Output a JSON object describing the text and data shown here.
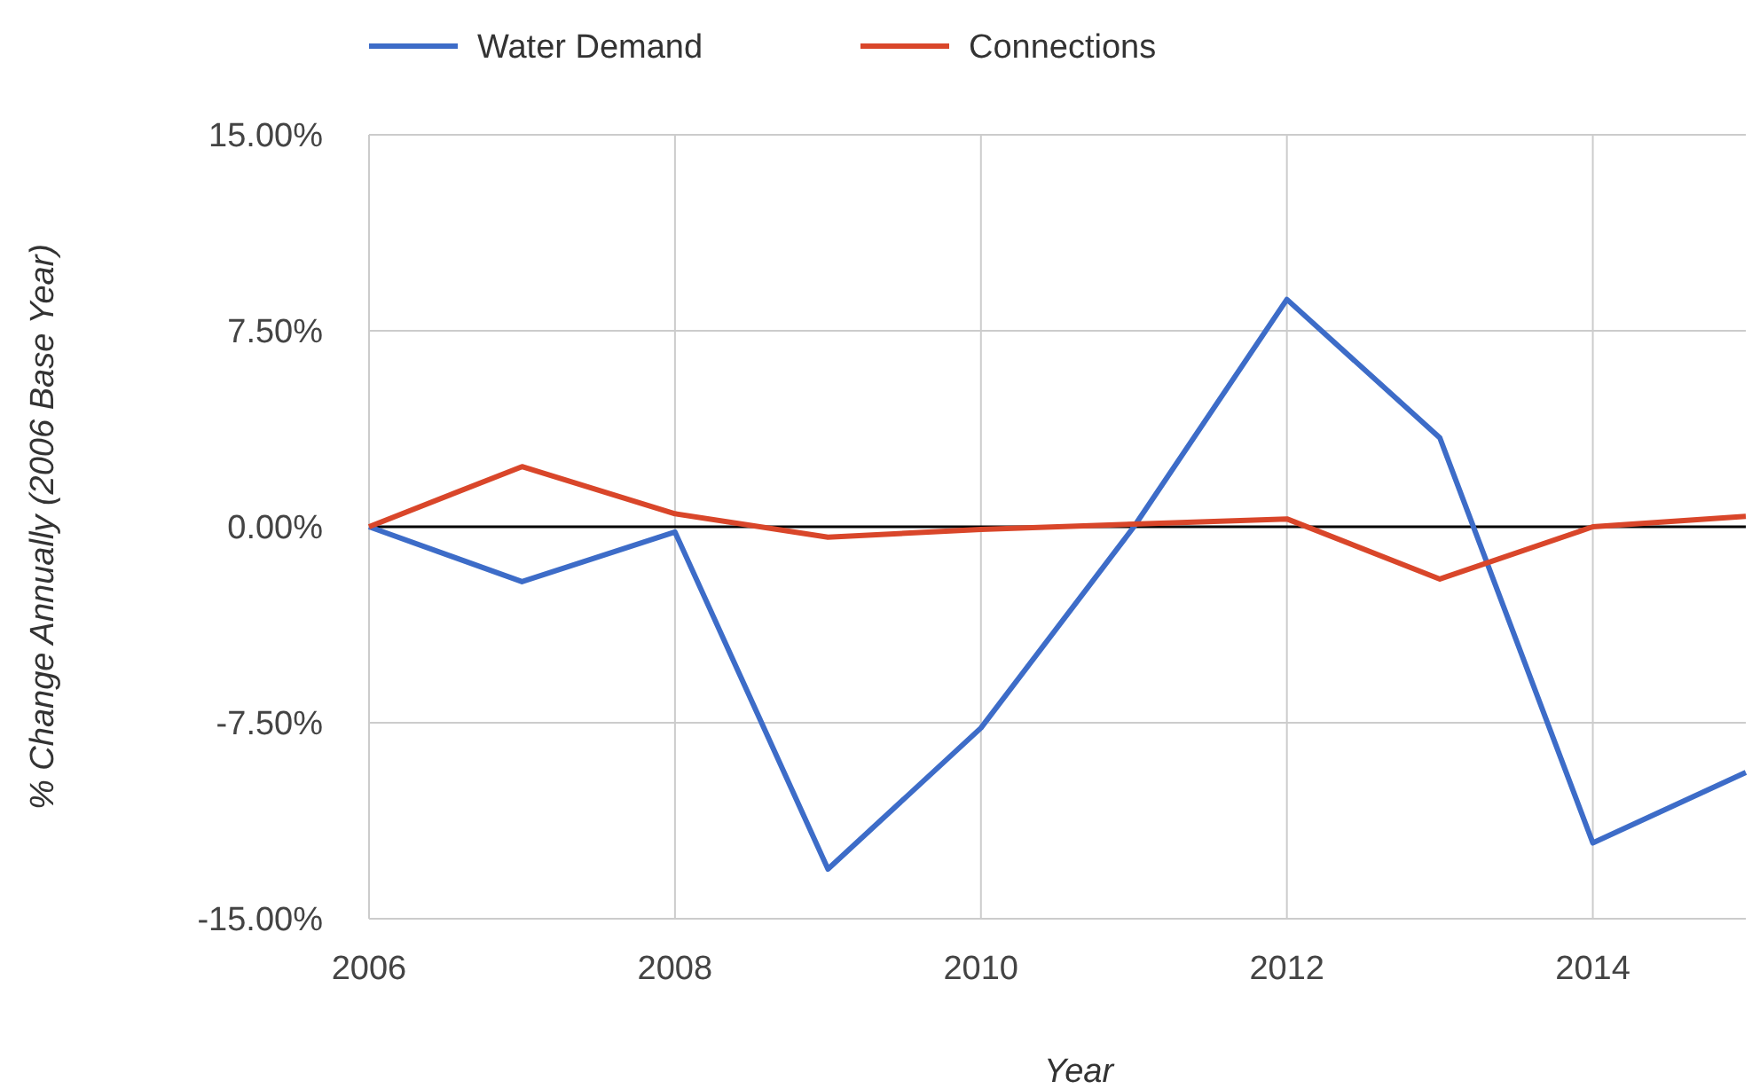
{
  "chart_data": {
    "type": "line",
    "xlabel": "Year",
    "ylabel": "% Change Annually (2006 Base Year)",
    "x": [
      2006,
      2007,
      2008,
      2009,
      2010,
      2011,
      2012,
      2013,
      2014,
      2015
    ],
    "series": [
      {
        "name": "Water Demand",
        "color": "#3d6cc8",
        "values": [
          0,
          -2.1,
          -0.2,
          -13.1,
          -7.7,
          0,
          8.7,
          3.4,
          -12.1,
          -9.4
        ]
      },
      {
        "name": "Connections",
        "color": "#d9462a",
        "values": [
          0,
          2.3,
          0.5,
          -0.4,
          -0.1,
          0.1,
          0.3,
          -2.0,
          0,
          0.4
        ]
      }
    ],
    "xlim": [
      2006,
      2015
    ],
    "xticks": [
      2006,
      2008,
      2010,
      2012,
      2014
    ],
    "ylim": [
      -15,
      15
    ],
    "yticks": [
      {
        "value": -15,
        "label": "-15.00%"
      },
      {
        "value": -7.5,
        "label": "-7.50%"
      },
      {
        "value": 0,
        "label": "0.00%"
      },
      {
        "value": 7.5,
        "label": "7.50%"
      },
      {
        "value": 15,
        "label": "15.00%"
      }
    ],
    "ref_lines": [
      {
        "axis": "y",
        "value": 0,
        "color": "#000000"
      }
    ],
    "grid": true,
    "legend": "top",
    "marker": "none",
    "line_style": "solid"
  }
}
